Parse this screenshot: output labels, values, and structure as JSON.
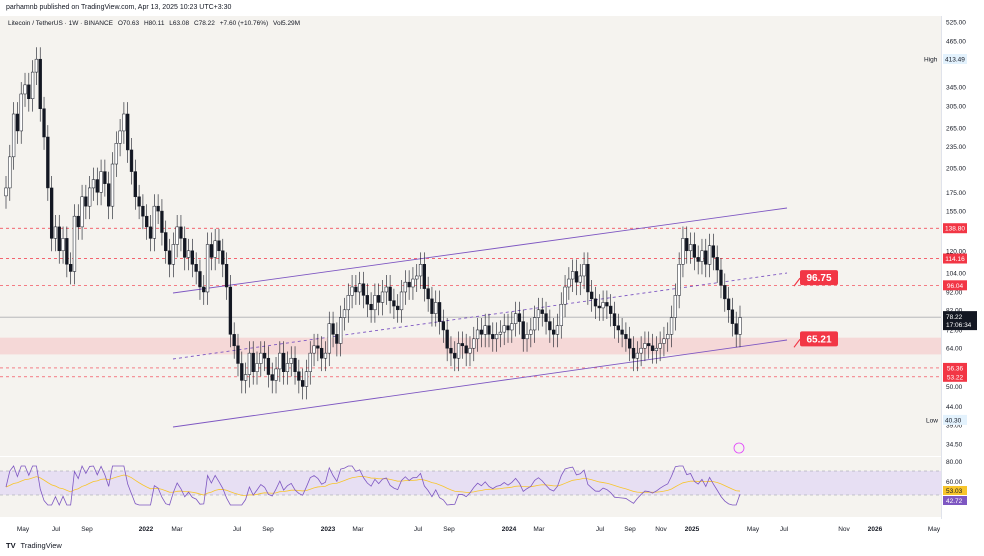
{
  "header": {
    "publisher": "parhamnb published on TradingView.com, Apr 13, 2025 10:23 UTC+3:30"
  },
  "legend": {
    "symbol": "Litecoin / TetherUS · 1W · BINANCE",
    "open": "O70.63",
    "high": "H80.11",
    "low": "L63.08",
    "close": "C78.22",
    "change": "+7.60 (+10.76%)",
    "volume": "Vol5.29M"
  },
  "footer": {
    "logo": "TV",
    "brand": "TradingView"
  },
  "chart_data": {
    "type": "candlestick",
    "scale": "log",
    "ylim": [
      30,
      540
    ],
    "price_ticks": [
      "525.00",
      "465.00",
      "345.00",
      "305.00",
      "265.00",
      "235.00",
      "205.00",
      "175.00",
      "155.00",
      "120.00",
      "104.00",
      "92.00",
      "82.00",
      "72.00",
      "64.00",
      "50.00",
      "44.00",
      "39.00",
      "34.50"
    ],
    "time_ticks": [
      "May",
      "Jul",
      "Sep",
      "2022",
      "Mar",
      "Jul",
      "Sep",
      "2023",
      "Mar",
      "Jul",
      "Sep",
      "2024",
      "Mar",
      "Jul",
      "Sep",
      "Nov",
      "2025",
      "May",
      "Jul",
      "Nov",
      "2026",
      "May"
    ],
    "horizontal_levels": [
      {
        "price": 138.8,
        "label": "138.80",
        "style": "dashed-red"
      },
      {
        "price": 114.16,
        "label": "114.16",
        "style": "dashed-red"
      },
      {
        "price": 96.04,
        "label": "96.04",
        "style": "dashed-red"
      },
      {
        "price": 56.36,
        "label": "56.36",
        "style": "dashed-red"
      },
      {
        "price": 53.22,
        "label": "53.22",
        "style": "dashed-red"
      }
    ],
    "current": {
      "price": "78.22",
      "countdown": "17:06:34"
    },
    "high_marker": {
      "label": "High",
      "price": "413.49"
    },
    "low_marker": {
      "label": "Low",
      "price": "40.30"
    },
    "callouts": [
      {
        "price": "96.75",
        "target": 96.75
      },
      {
        "price": "65.21",
        "target": 65.21
      }
    ],
    "support_zone": [
      61.5,
      68.5
    ],
    "candles_weekly_close": [
      180,
      220,
      290,
      260,
      330,
      350,
      320,
      380,
      413,
      300,
      250,
      180,
      130,
      140,
      120,
      130,
      110,
      105,
      150,
      140,
      170,
      160,
      180,
      190,
      175,
      200,
      185,
      160,
      210,
      240,
      260,
      290,
      230,
      200,
      170,
      160,
      150,
      140,
      130,
      160,
      155,
      135,
      120,
      110,
      125,
      140,
      130,
      115,
      120,
      110,
      105,
      95,
      92,
      125,
      115,
      128,
      120,
      110,
      95,
      70,
      65,
      58,
      52,
      54,
      62,
      55,
      58,
      62,
      60,
      54,
      52,
      56,
      62,
      55,
      58,
      60,
      55,
      52,
      50,
      55,
      62,
      65,
      64,
      60,
      62,
      75,
      70,
      66,
      78,
      82,
      90,
      95,
      92,
      97,
      90,
      85,
      82,
      90,
      86,
      92,
      95,
      87,
      84,
      82,
      92,
      98,
      95,
      100,
      102,
      110,
      94,
      88,
      80,
      86,
      76,
      72,
      64,
      62,
      60,
      66,
      65,
      62,
      64,
      68,
      72,
      70,
      74,
      70,
      68,
      70,
      71,
      74,
      72,
      75,
      80,
      76,
      68,
      70,
      72,
      78,
      82,
      80,
      76,
      72,
      70,
      74,
      85,
      95,
      100,
      105,
      98,
      102,
      110,
      92,
      88,
      84,
      83,
      86,
      84,
      80,
      74,
      72,
      70,
      68,
      64,
      60,
      62,
      64,
      66,
      65,
      63,
      64,
      66,
      68,
      70,
      78,
      90,
      110,
      130,
      120,
      125,
      115,
      112,
      120,
      110,
      124,
      115,
      106,
      96,
      88,
      82,
      75,
      70,
      78
    ],
    "channel_upper": [
      [
        173,
        293
      ],
      [
        787,
        208
      ]
    ],
    "channel_mid": [
      [
        173,
        359
      ],
      [
        787,
        273
      ]
    ],
    "channel_lower": [
      [
        173,
        427
      ],
      [
        787,
        340
      ]
    ],
    "rsi": {
      "levels": [
        "80.00",
        "60.00"
      ],
      "value": "53.03",
      "ma": "42.72"
    }
  }
}
